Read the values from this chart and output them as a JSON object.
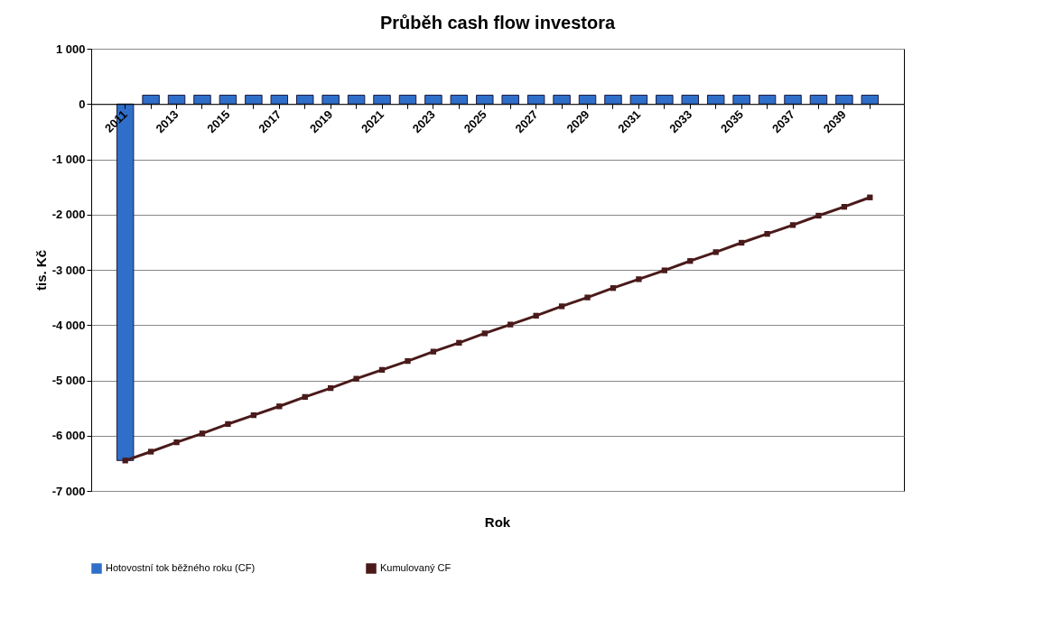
{
  "chart_data": {
    "type": "bar",
    "title": "Průběh cash flow investora",
    "xlabel": "Rok",
    "ylabel": "tis. Kč",
    "categories": [
      "2011",
      null,
      "2013",
      null,
      "2015",
      null,
      "2017",
      null,
      "2019",
      null,
      "2021",
      null,
      "2023",
      null,
      "2025",
      null,
      "2027",
      null,
      "2029",
      null,
      "2031",
      null,
      "2033",
      null,
      "2035",
      null,
      "2037",
      null,
      "2039",
      null
    ],
    "series": [
      {
        "name": "Hotovostní tok běžného roku (CF)",
        "color": "#2f6fc9",
        "values": [
          -6450,
          160,
          160,
          160,
          160,
          160,
          160,
          160,
          160,
          160,
          160,
          160,
          160,
          160,
          160,
          160,
          160,
          160,
          160,
          160,
          160,
          160,
          160,
          160,
          160,
          160,
          160,
          160,
          160,
          160
        ]
      },
      {
        "name": "Kumulovaný CF",
        "type": "line",
        "color": "#4a1a1a",
        "marker": "square",
        "values": [
          -6450,
          -6290,
          -6120,
          -5960,
          -5790,
          -5630,
          -5470,
          -5300,
          -5140,
          -4970,
          -4810,
          -4650,
          -4480,
          -4320,
          -4150,
          -3990,
          -3830,
          -3660,
          -3500,
          -3330,
          -3170,
          -3010,
          -2840,
          -2680,
          -2510,
          -2350,
          -2190,
          -2020,
          -1860,
          -1690
        ]
      }
    ],
    "ylim": [
      -7000,
      1000
    ],
    "yticks": [
      {
        "value": 1000,
        "label": "1 000"
      },
      0,
      {
        "value": -1000,
        "label": "-1 000"
      },
      {
        "value": -2000,
        "label": "-2 000"
      },
      {
        "value": -3000,
        "label": "-3 000"
      },
      {
        "value": -4000,
        "label": "-4 000"
      },
      {
        "value": -5000,
        "label": "-5 000"
      },
      {
        "value": -6000,
        "label": "-6 000"
      },
      {
        "value": -7000,
        "label": "-7 000"
      }
    ],
    "grid": "y",
    "legend": "bottom"
  }
}
